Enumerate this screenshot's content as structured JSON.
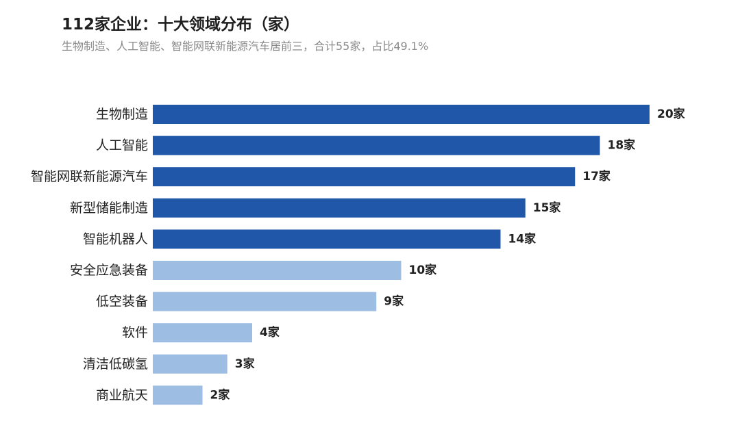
{
  "title": "112家企业：十大领域分布（家）",
  "subtitle": "生物制造、人工智能、智能网联新能源汽车居前三，合计55家，占比49.1%",
  "chart_data": {
    "type": "bar",
    "orientation": "horizontal",
    "title": "112家企业：十大领域分布（家）",
    "subtitle": "生物制造、人工智能、智能网联新能源汽车居前三，合计55家，占比49.1%",
    "categories": [
      "生物制造",
      "人工智能",
      "智能网联新能源汽车",
      "新型储能制造",
      "智能机器人",
      "安全应急装备",
      "低空装备",
      "软件",
      "清洁低碳氢",
      "商业航天"
    ],
    "values": [
      20,
      18,
      17,
      15,
      14,
      10,
      9,
      4,
      3,
      2
    ],
    "value_labels": [
      "20家",
      "18家",
      "17家",
      "15家",
      "14家",
      "10家",
      "9家",
      "4家",
      "3家",
      "2家"
    ],
    "highlight_top_n": 5,
    "xlim": [
      0,
      20
    ],
    "xlabel": "",
    "ylabel": "",
    "grid": false,
    "legend": "none",
    "colors": {
      "highlight": "#2057a8",
      "normal": "#9dbde2"
    }
  }
}
